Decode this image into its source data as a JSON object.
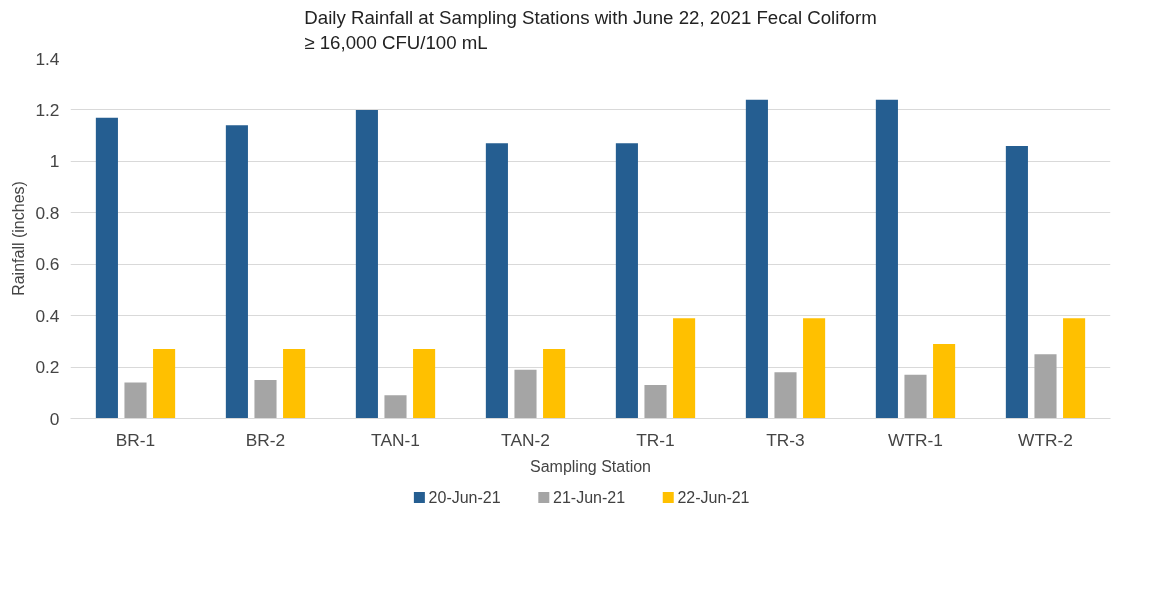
{
  "chart_data": {
    "type": "bar",
    "title": "Daily Rainfall at Sampling Stations with June 22, 2021 Fecal Coliform\n≥ 16,000 CFU/100 mL",
    "xlabel": "Sampling Station",
    "ylabel": "Rainfall (inches)",
    "categories": [
      "BR-1",
      "BR-2",
      "TAN-1",
      "TAN-2",
      "TR-1",
      "TR-3",
      "WTR-1",
      "WTR-2"
    ],
    "series": [
      {
        "name": "20-Jun-21",
        "color": "#255e91",
        "values": [
          1.17,
          1.14,
          1.2,
          1.07,
          1.07,
          1.24,
          1.24,
          1.06
        ]
      },
      {
        "name": "21-Jun-21",
        "color": "#a5a5a5",
        "values": [
          0.14,
          0.15,
          0.09,
          0.19,
          0.13,
          0.18,
          0.17,
          0.25
        ]
      },
      {
        "name": "22-Jun-21",
        "color": "#ffc000",
        "values": [
          0.27,
          0.27,
          0.27,
          0.27,
          0.39,
          0.39,
          0.29,
          0.39
        ]
      }
    ],
    "ylim": [
      0,
      1.4
    ],
    "yticks": [
      0,
      0.2,
      0.4,
      0.6,
      0.8,
      1,
      1.2,
      1.4
    ],
    "grid": "y",
    "legend": "bottom"
  }
}
